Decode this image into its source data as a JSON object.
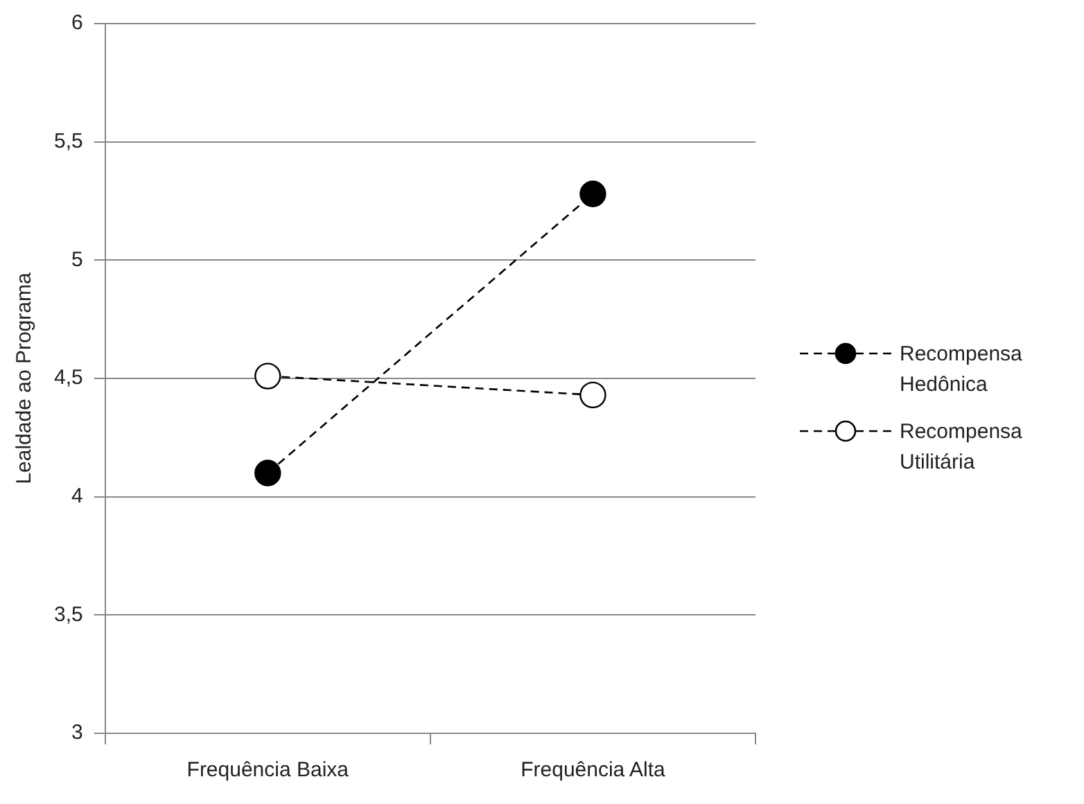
{
  "chart_data": {
    "type": "line",
    "ylabel": "Lealdade ao Programa",
    "categories": [
      "Frequência Baixa",
      "Frequência Alta"
    ],
    "series": [
      {
        "name": "Recompensa Hedônica",
        "color": "#000000",
        "colors": [
          "#000000",
          "#000000"
        ],
        "values": [
          4.1,
          5.28
        ]
      },
      {
        "name": "Recompensa Utilitária",
        "color": "#000000",
        "colors": [
          "#ffffff",
          "#ffffff"
        ],
        "values": [
          4.51,
          4.43
        ]
      }
    ],
    "ylim": [
      3,
      6
    ],
    "yticks": [
      {
        "value": 3,
        "label": "3"
      },
      {
        "value": 3.5,
        "label": "3,5"
      },
      {
        "value": 4,
        "label": "4"
      },
      {
        "value": 4.5,
        "label": "4,5"
      },
      {
        "value": 5,
        "label": "5"
      },
      {
        "value": 5.5,
        "label": "5,5"
      },
      {
        "value": 6,
        "label": "6"
      }
    ],
    "grid": "y",
    "legend": "right",
    "marker": "circle",
    "line_style": "dashed"
  }
}
